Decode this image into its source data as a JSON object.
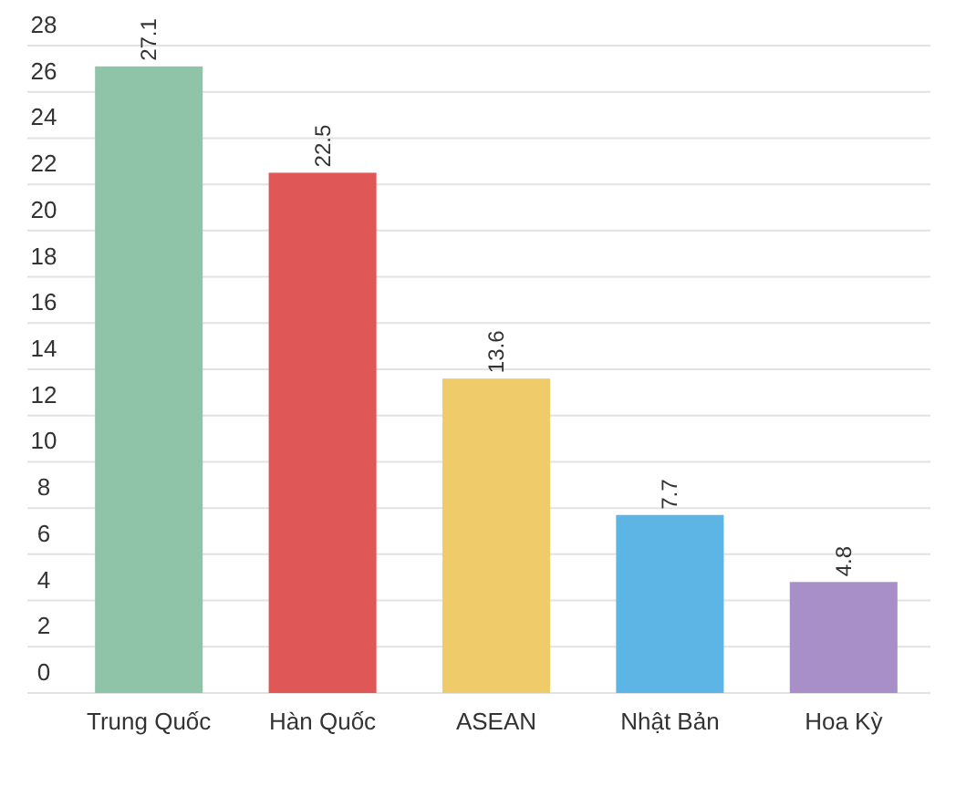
{
  "chart_data": {
    "type": "bar",
    "categories": [
      "Trung Quốc",
      "Hàn Quốc",
      "ASEAN",
      "Nhật Bản",
      "Hoa Kỳ"
    ],
    "values": [
      27.1,
      22.5,
      13.6,
      7.7,
      4.8
    ],
    "colors": [
      "#8fc4a8",
      "#e05757",
      "#efcb6a",
      "#5db5e5",
      "#a98fc7"
    ],
    "ylim": [
      0,
      28
    ],
    "yticks": [
      0,
      2,
      4,
      6,
      8,
      10,
      12,
      14,
      16,
      18,
      20,
      22,
      24,
      26,
      28
    ],
    "grid": "y",
    "data_labels": true
  }
}
